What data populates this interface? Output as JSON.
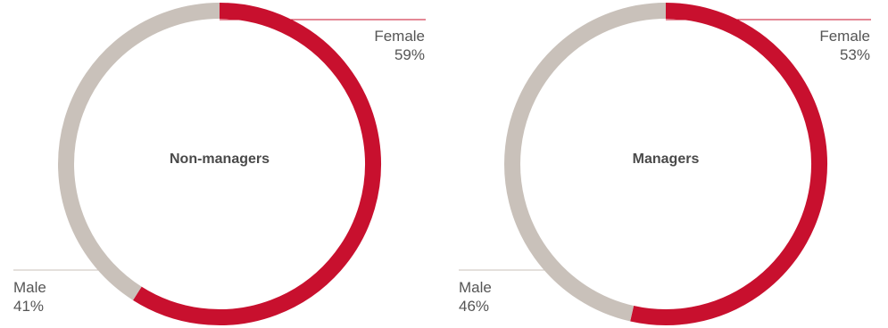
{
  "chart_data": [
    {
      "type": "pie",
      "title": "Non-managers",
      "slices": [
        {
          "label": "Female",
          "value": 59,
          "value_label": "59%",
          "color": "#c8102e"
        },
        {
          "label": "Male",
          "value": 41,
          "value_label": "41%",
          "color": "#c9c1ba"
        }
      ]
    },
    {
      "type": "pie",
      "title": "Managers",
      "slices": [
        {
          "label": "Female",
          "value": 53,
          "value_label": "53%",
          "color": "#c8102e"
        },
        {
          "label": "Male",
          "value": 46,
          "value_label": "46%",
          "color": "#c9c1ba"
        }
      ]
    }
  ]
}
